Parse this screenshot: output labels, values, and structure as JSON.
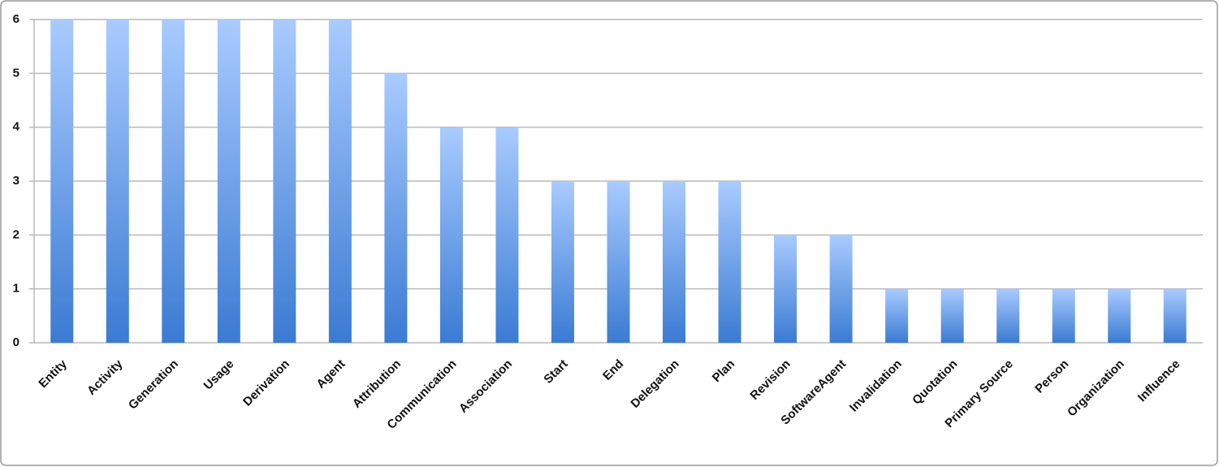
{
  "chart_data": {
    "type": "bar",
    "categories": [
      "Entity",
      "Activity",
      "Generation",
      "Usage",
      "Derivation",
      "Agent",
      "Attribution",
      "Communication",
      "Association",
      "Start",
      "End",
      "Delegation",
      "Plan",
      "Revision",
      "SoftwareAgent",
      "Invalidation",
      "Quotation",
      "Primary Source",
      "Person",
      "Organization",
      "Influence"
    ],
    "values": [
      6,
      6,
      6,
      6,
      6,
      6,
      5,
      4,
      4,
      3,
      3,
      3,
      3,
      2,
      2,
      1,
      1,
      1,
      1,
      1,
      1
    ],
    "color": [
      "#a9cbff",
      "#3b7bd3"
    ],
    "ylim": [
      0,
      6
    ],
    "yticks": [
      0,
      1,
      2,
      3,
      4,
      5,
      6
    ],
    "grid": true
  }
}
